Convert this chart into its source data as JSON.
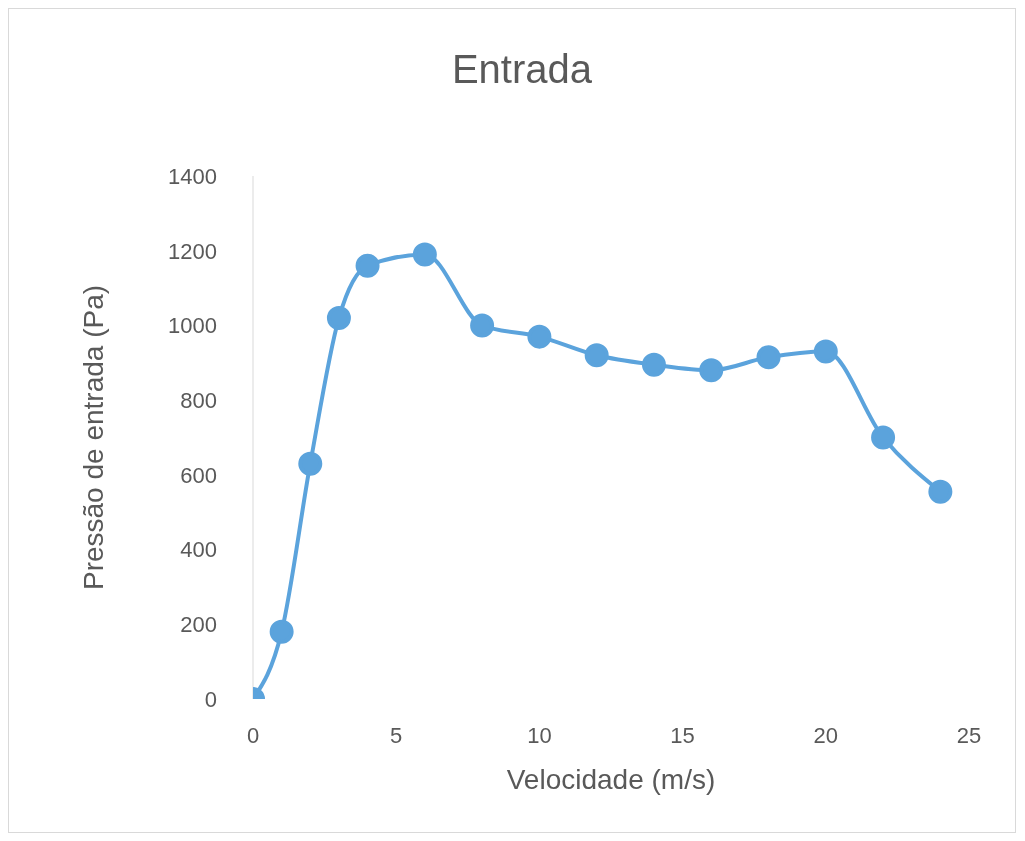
{
  "chart_data": {
    "type": "line",
    "title": "Entrada",
    "xlabel": "Velocidade (m/s)",
    "ylabel": "Pressão de entrada (Pa)",
    "x": [
      0,
      1,
      2,
      3,
      4,
      6,
      8,
      10,
      12,
      14,
      16,
      18,
      20,
      22,
      24
    ],
    "series": [
      {
        "color": "#5ba3dc",
        "values": [
          0,
          180,
          630,
          1020,
          1160,
          1190,
          1000,
          970,
          920,
          895,
          880,
          915,
          930,
          700,
          555
        ]
      }
    ],
    "xlim": [
      0,
      25
    ],
    "xticks": [
      0,
      5,
      10,
      15,
      20,
      25
    ],
    "ylim": [
      0,
      1400
    ],
    "yticks": [
      0,
      200,
      400,
      600,
      800,
      1000,
      1200,
      1400
    ],
    "grid": false,
    "legend": false,
    "marker": "circle",
    "line_style": "solid"
  }
}
